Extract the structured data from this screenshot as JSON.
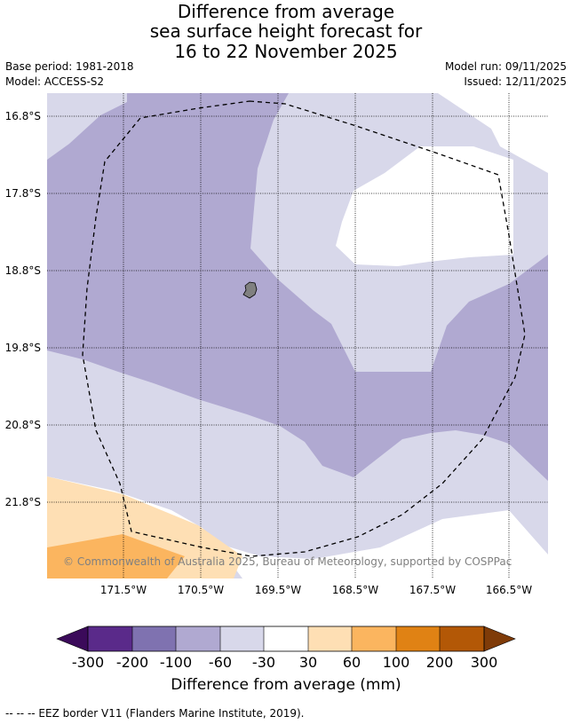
{
  "title": {
    "line1": "Difference from average",
    "line2": "sea surface height forecast for",
    "line3": "16 to 22 November 2025"
  },
  "meta": {
    "base_period": "Base period: 1981-2018",
    "model": "Model: ACCESS-S2",
    "model_run": "Model run: 09/11/2025",
    "issued": "Issued: 12/11/2025"
  },
  "map": {
    "lat_labels": [
      "16.8°S",
      "17.8°S",
      "18.8°S",
      "19.8°S",
      "20.8°S",
      "21.8°S"
    ],
    "lon_labels": [
      "171.5°W",
      "170.5°W",
      "169.5°W",
      "168.5°W",
      "167.5°W",
      "166.5°W"
    ],
    "copyright": "© Commonwealth of Australia 2025, Bureau of Meteorology, supported by COSPPac",
    "colors": {
      "band_m100_m60": "#b0a9d1",
      "band_m60_m30": "#d8d8ea",
      "band_m30_30": "#ffffff",
      "band_30_60": "#fedfb4",
      "band_60_100": "#fbb55f",
      "island": "#808080"
    }
  },
  "colorbar": {
    "ticks": [
      "-300",
      "-200",
      "-100",
      "-60",
      "-30",
      "30",
      "60",
      "100",
      "200",
      "300"
    ],
    "colors": [
      "#3b0a5a",
      "#5a2a8a",
      "#7f72b0",
      "#b0a9d1",
      "#d8d8ea",
      "#ffffff",
      "#fedfb4",
      "#fbb55f",
      "#e08214",
      "#b35806",
      "#7f3b08"
    ],
    "label": "Difference from average (mm)"
  },
  "footer": "--  --  -- EEZ border V11 (Flanders Marine Institute, 2019)."
}
